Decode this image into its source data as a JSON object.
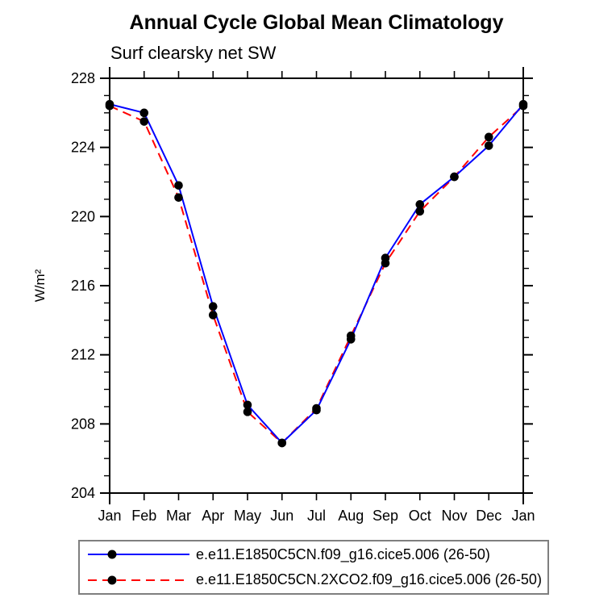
{
  "title": "Annual Cycle Global Mean Climatology",
  "subtitle": "Surf clearsky net SW",
  "chart_data": {
    "type": "line",
    "categories": [
      "Jan",
      "Feb",
      "Mar",
      "Apr",
      "May",
      "Jun",
      "Jul",
      "Aug",
      "Sep",
      "Oct",
      "Nov",
      "Dec",
      "Jan"
    ],
    "ylabel": "W/m²",
    "ylim": [
      204,
      228
    ],
    "ytick_step": 4,
    "yminor_step": 1,
    "ytick_labels": [
      "204",
      "208",
      "212",
      "216",
      "220",
      "224",
      "228"
    ],
    "grid": false,
    "legend_position": "bottom",
    "marker_color": "#000000",
    "axis_color": "#000000",
    "series": [
      {
        "name": "e.e11.E1850C5CN.f09_g16.cice5.006 (26-50)",
        "color": "#0000ff",
        "style": "solid",
        "values": [
          226.5,
          226.0,
          221.8,
          214.8,
          209.1,
          206.9,
          208.8,
          212.9,
          217.6,
          220.7,
          222.3,
          224.1,
          226.5
        ]
      },
      {
        "name": "e.e11.E1850C5CN.2XCO2.f09_g16.cice5.006 (26-50)",
        "color": "#ff0000",
        "style": "dashed",
        "values": [
          226.4,
          225.5,
          221.1,
          214.3,
          208.7,
          206.9,
          208.9,
          213.1,
          217.3,
          220.3,
          222.3,
          224.6,
          226.4
        ]
      }
    ]
  }
}
